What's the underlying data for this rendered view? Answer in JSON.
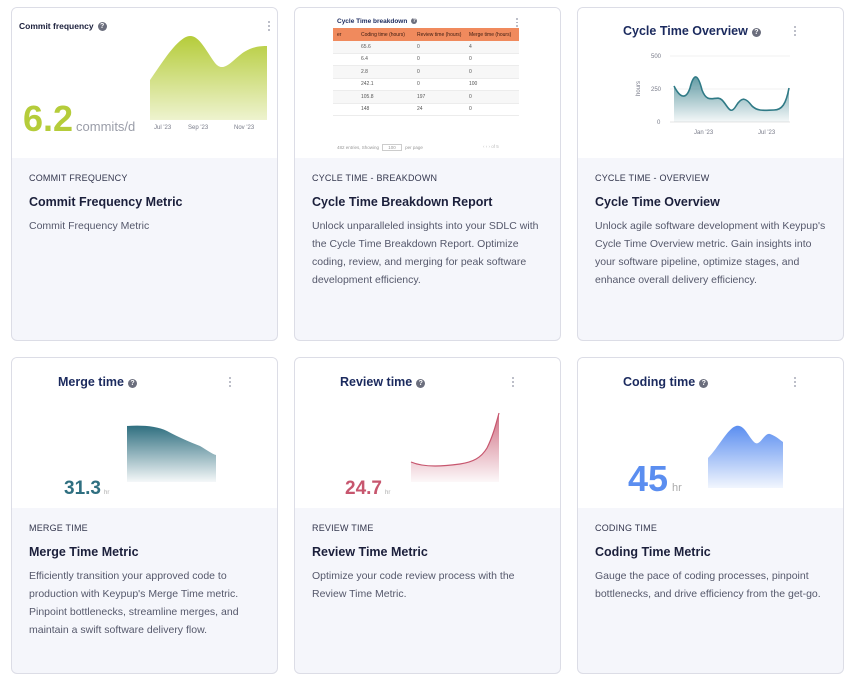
{
  "cards": [
    {
      "category": "COMMIT FREQUENCY",
      "title": "Commit Frequency Metric",
      "description": "Commit Frequency Metric",
      "preview": {
        "title": "Commit frequency",
        "value": "6.2",
        "unit": "commits/d",
        "ticks": [
          "Jul '23",
          "Sep '23",
          "Nov '23"
        ],
        "color": "#b5cc3a"
      }
    },
    {
      "category": "CYCLE TIME - BREAKDOWN",
      "title": "Cycle Time Breakdown Report",
      "description": "Unlock unparalleled insights into your SDLC with the Cycle Time Breakdown Report. Optimize coding, review, and merging for peak software development efficiency.",
      "preview": {
        "title": "Cycle Time breakdown",
        "columns": [
          "er",
          "Coding time (hours)",
          "Review time (hours)",
          "Merge time (hours)"
        ],
        "rows": [
          [
            "",
            "65.6",
            "0",
            "4"
          ],
          [
            "",
            "6.4",
            "0",
            "0"
          ],
          [
            "",
            "2.8",
            "0",
            "0"
          ],
          [
            "",
            "242.1",
            "0",
            "100"
          ],
          [
            "",
            "105.8",
            "197",
            "0"
          ],
          [
            "",
            "148",
            "24",
            "0"
          ]
        ],
        "footer": "482 entries, Showing",
        "footer_select": "100",
        "footer_suffix": "per page",
        "footer_page": "of 5"
      }
    },
    {
      "category": "CYCLE TIME - OVERVIEW",
      "title": "Cycle Time Overview",
      "description": "Unlock agile software development with Keypup's Cycle Time Overview metric. Gain insights into your software pipeline, optimize stages, and enhance overall delivery efficiency.",
      "preview": {
        "title": "Cycle Time Overview",
        "y_label": "hours",
        "y_ticks": [
          "500",
          "250",
          "0"
        ],
        "x_ticks": [
          "Jan '23",
          "Jul '23"
        ],
        "color": "#2f7a86"
      }
    },
    {
      "category": "MERGE TIME",
      "title": "Merge Time Metric",
      "description": "Efficiently transition your approved code to production with Keypup's Merge Time metric. Pinpoint bottlenecks, streamline merges, and maintain a swift software delivery flow.",
      "preview": {
        "title": "Merge time",
        "value": "31.3",
        "unit": "hr",
        "color": "#2f6f80"
      }
    },
    {
      "category": "REVIEW TIME",
      "title": "Review Time Metric",
      "description": "Optimize your code review process with the Review Time Metric.",
      "preview": {
        "title": "Review time",
        "value": "24.7",
        "unit": "hr",
        "color": "#c7566e"
      }
    },
    {
      "category": "CODING TIME",
      "title": "Coding Time Metric",
      "description": "Gauge the pace of coding processes, pinpoint bottlenecks, and drive efficiency from the get-go.",
      "preview": {
        "title": "Coding time",
        "value": "45",
        "unit": "hr",
        "color": "#5b8ef0"
      }
    }
  ],
  "icons": {
    "help": "question-mark-icon",
    "menu": "kebab-menu-icon"
  },
  "help_glyph": "?"
}
